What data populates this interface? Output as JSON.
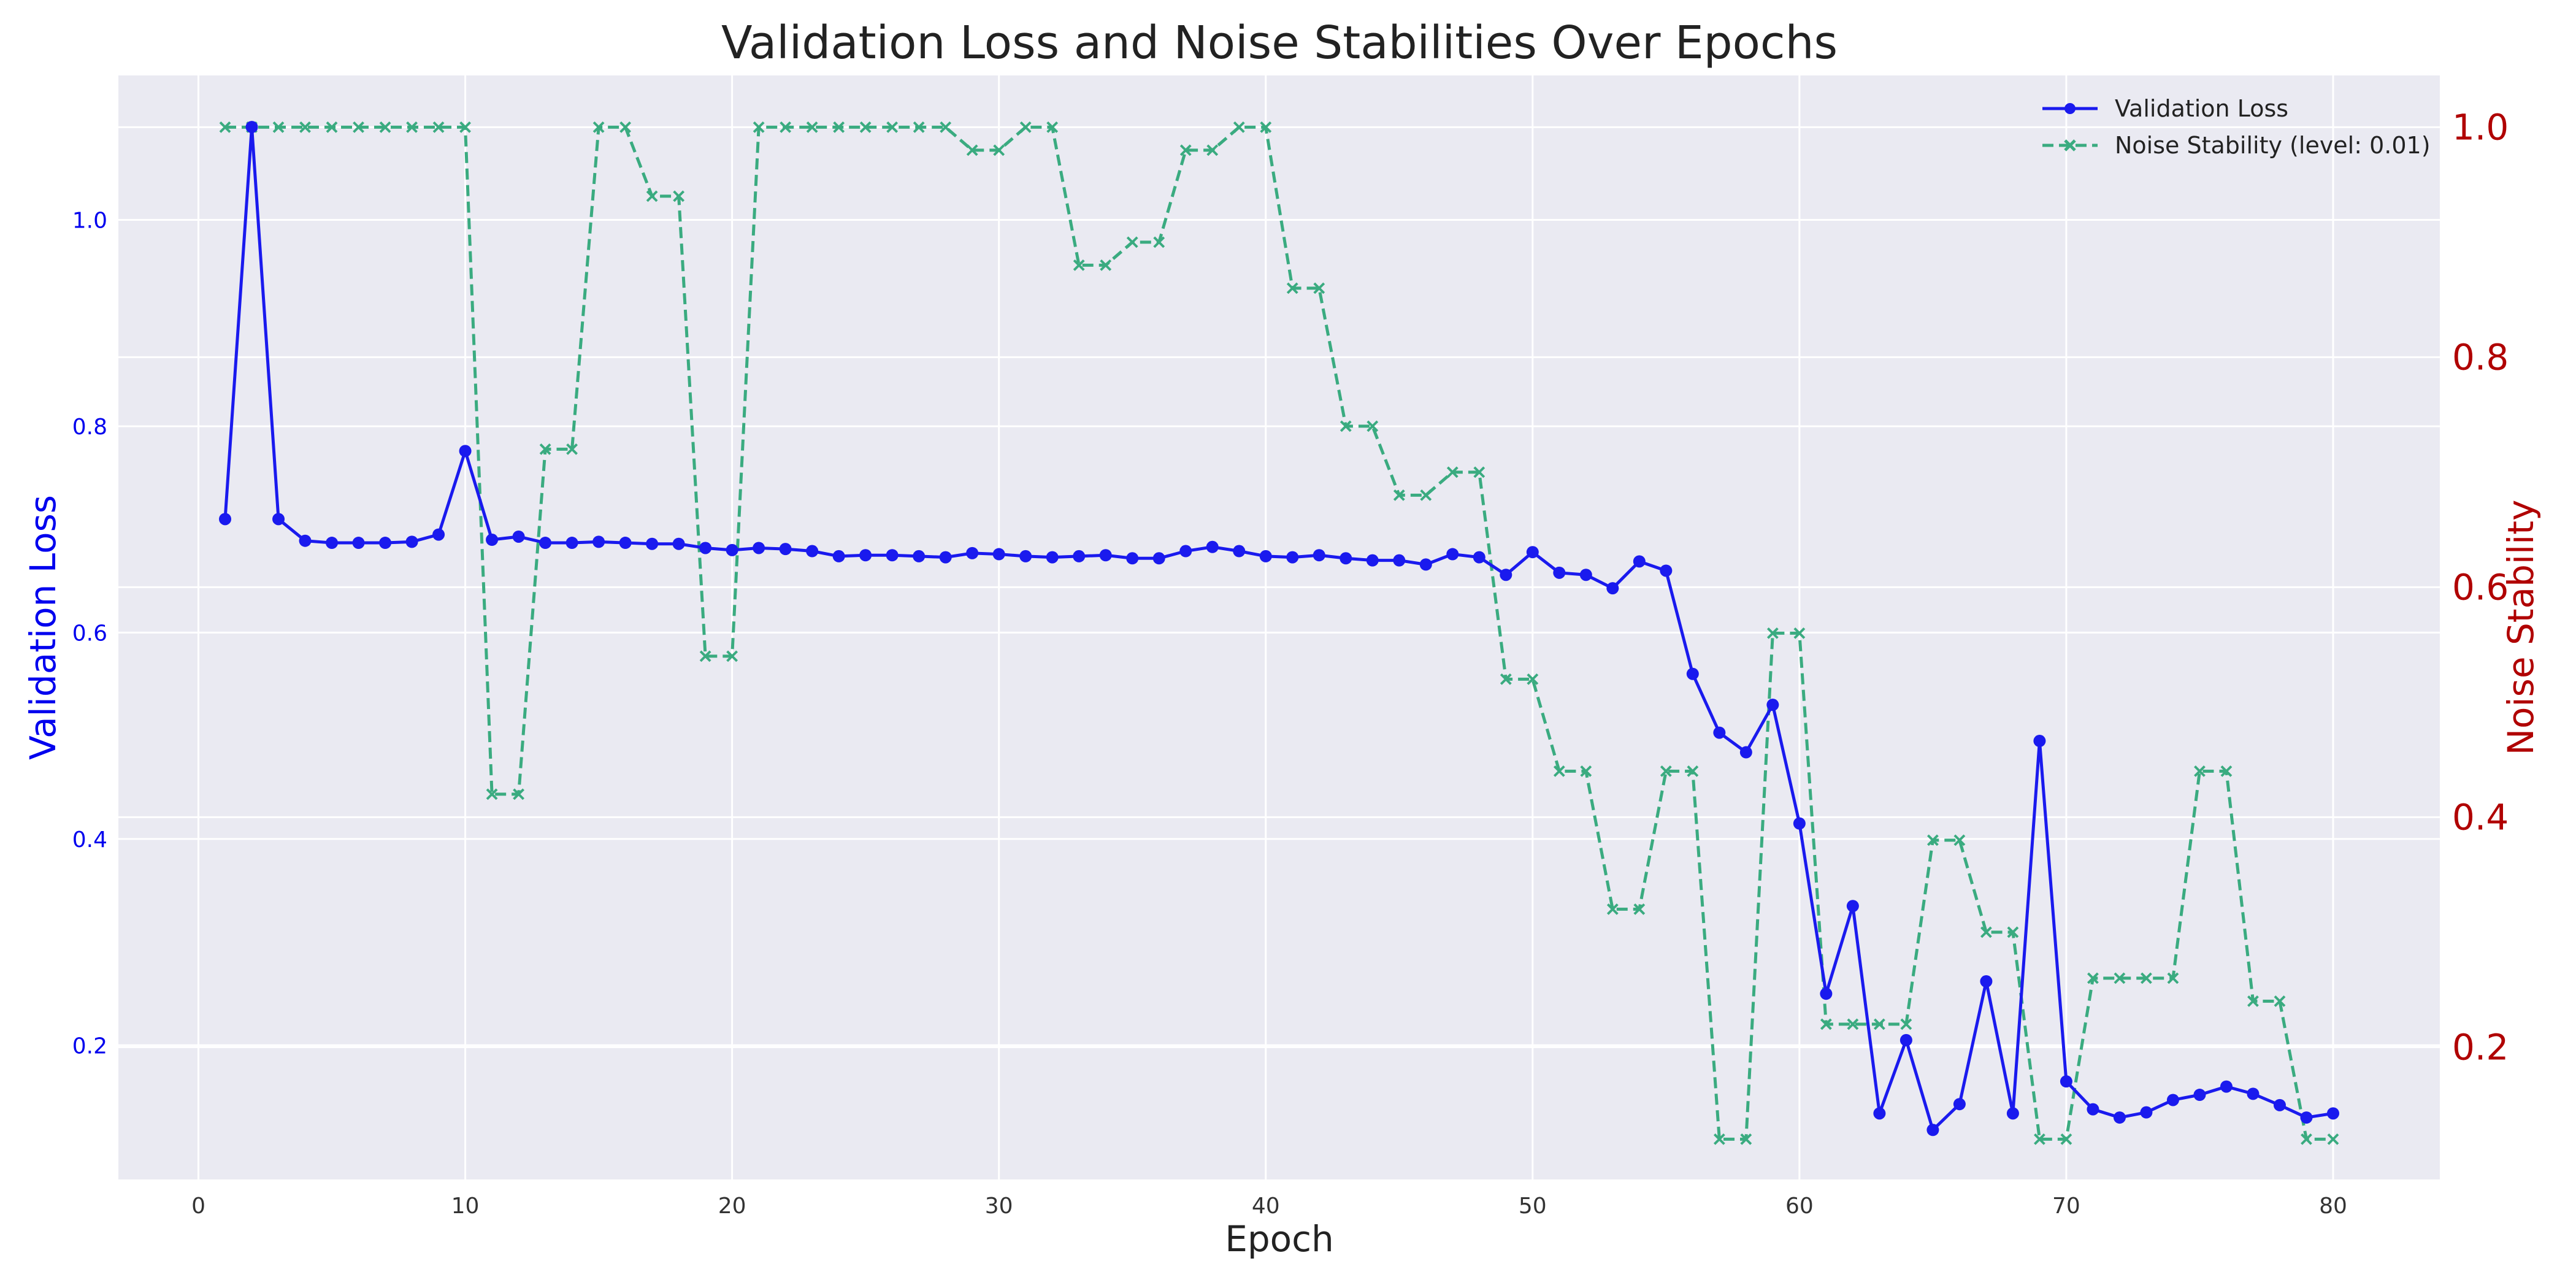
{
  "chart_data": {
    "type": "line",
    "title": "Validation Loss and Noise Stabilities Over Epochs",
    "xlabel": "Epoch",
    "ylabel_left": "Validation Loss",
    "ylabel_right": "Noise Stability",
    "xlim": [
      -3,
      84
    ],
    "ylim_left": [
      0.07,
      1.14
    ],
    "ylim_right": [
      0.085,
      1.045
    ],
    "x_ticks": [
      0,
      10,
      20,
      30,
      40,
      50,
      60,
      70,
      80
    ],
    "y_left_ticks": [
      0.2,
      0.4,
      0.6,
      0.8,
      1.0
    ],
    "y_left_tick_labels": [
      "0.2",
      "0.4",
      "0.6",
      "0.8",
      "1.0"
    ],
    "y_right_ticks": [
      0.2,
      0.4,
      0.6,
      0.8,
      1.0
    ],
    "y_right_tick_labels": [
      "0.2",
      "0.4",
      "0.6",
      "0.8",
      "1.0"
    ],
    "grid": true,
    "legend_position": "top-right",
    "background_color": "#eaeaf2",
    "x": [
      1,
      2,
      3,
      4,
      5,
      6,
      7,
      8,
      9,
      10,
      11,
      12,
      13,
      14,
      15,
      16,
      17,
      18,
      19,
      20,
      21,
      22,
      23,
      24,
      25,
      26,
      27,
      28,
      29,
      30,
      31,
      32,
      33,
      34,
      35,
      36,
      37,
      38,
      39,
      40,
      41,
      42,
      43,
      44,
      45,
      46,
      47,
      48,
      49,
      50,
      51,
      52,
      53,
      54,
      55,
      56,
      57,
      58,
      59,
      60,
      61,
      62,
      63,
      64,
      65,
      66,
      67,
      68,
      69,
      70,
      71,
      72,
      73,
      74,
      75,
      76,
      77,
      78,
      79,
      80
    ],
    "series": [
      {
        "name": "Validation Loss",
        "axis": "left",
        "color": "#1a1aee",
        "marker": "circle",
        "line_style": "solid",
        "values": [
          0.71,
          1.09,
          0.71,
          0.689,
          0.687,
          0.687,
          0.687,
          0.688,
          0.695,
          0.776,
          0.69,
          0.693,
          0.687,
          0.687,
          0.688,
          0.687,
          0.686,
          0.686,
          0.682,
          0.68,
          0.682,
          0.681,
          0.679,
          0.674,
          0.675,
          0.675,
          0.674,
          0.673,
          0.677,
          0.676,
          0.674,
          0.673,
          0.674,
          0.675,
          0.672,
          0.672,
          0.679,
          0.683,
          0.679,
          0.674,
          0.673,
          0.675,
          0.672,
          0.67,
          0.67,
          0.666,
          0.676,
          0.673,
          0.656,
          0.678,
          0.658,
          0.656,
          0.643,
          0.669,
          0.66,
          0.56,
          0.503,
          0.484,
          0.53,
          0.415,
          0.25,
          0.335,
          0.134,
          0.205,
          0.118,
          0.143,
          0.262,
          0.134,
          0.495,
          0.165,
          0.138,
          0.13,
          0.135,
          0.147,
          0.152,
          0.16,
          0.153,
          0.142,
          0.13,
          0.134
        ]
      },
      {
        "name": "Noise Stability (level: 0.01)",
        "axis": "right",
        "color": "#3aab80",
        "marker": "x",
        "line_style": "dashed",
        "values": [
          1.0,
          1.0,
          1.0,
          1.0,
          1.0,
          1.0,
          1.0,
          1.0,
          1.0,
          1.0,
          0.42,
          0.42,
          0.72,
          0.72,
          1.0,
          1.0,
          0.94,
          0.94,
          0.54,
          0.54,
          1.0,
          1.0,
          1.0,
          1.0,
          1.0,
          1.0,
          1.0,
          1.0,
          0.98,
          0.98,
          1.0,
          1.0,
          0.88,
          0.88,
          0.9,
          0.9,
          0.98,
          0.98,
          1.0,
          1.0,
          0.86,
          0.86,
          0.74,
          0.74,
          0.68,
          0.68,
          0.7,
          0.7,
          0.52,
          0.52,
          0.44,
          0.44,
          0.32,
          0.32,
          0.44,
          0.44,
          0.12,
          0.12,
          0.56,
          0.56,
          0.22,
          0.22,
          0.22,
          0.22,
          0.38,
          0.38,
          0.3,
          0.3,
          0.12,
          0.12,
          0.26,
          0.26,
          0.26,
          0.26,
          0.44,
          0.44,
          0.24,
          0.24,
          0.12,
          0.12
        ]
      }
    ]
  }
}
